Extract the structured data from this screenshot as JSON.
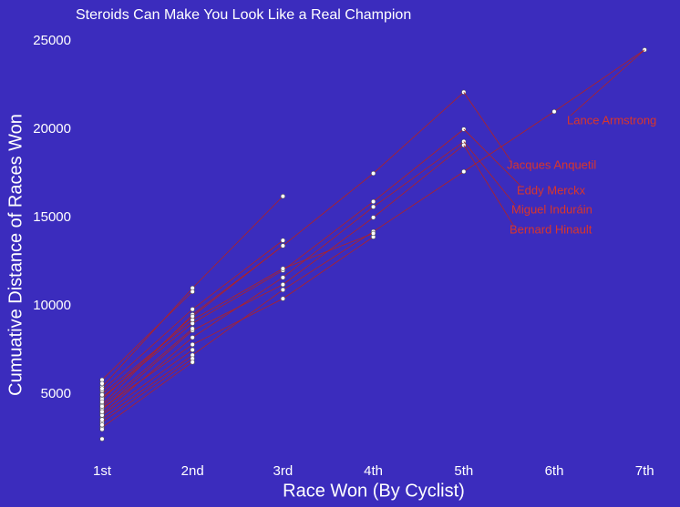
{
  "chart_data": {
    "type": "line",
    "title": "Steroids Can Make You Look Like a Real Champion",
    "x_label": "Race Won (By Cyclist)",
    "y_label": "Cumuative Distance of Races Won",
    "categories": [
      "1st",
      "2nd",
      "3rd",
      "4th",
      "5th",
      "6th",
      "7th"
    ],
    "ylim": [
      2000,
      25800
    ],
    "yticks": [
      5000,
      10000,
      15000,
      20000,
      25000
    ],
    "line_color": "#b22222",
    "point_color": "#ffffff",
    "series": [
      {
        "name": "Jacques Anquetil",
        "values": [
          4400,
          9500,
          13400,
          17500,
          22100,
          null,
          null
        ]
      },
      {
        "name": "Eddy Merckx",
        "values": [
          4800,
          9000,
          12000,
          15900,
          20000,
          null,
          null
        ]
      },
      {
        "name": "Miguel Induráin",
        "values": [
          3900,
          8200,
          11600,
          15600,
          19300,
          null,
          null
        ]
      },
      {
        "name": "Bernard Hinault",
        "values": [
          4100,
          8600,
          11200,
          15000,
          19100,
          null,
          null
        ]
      },
      {
        "name": "Lance Armstrong",
        "values": [
          3600,
          7200,
          10900,
          14200,
          17600,
          21000,
          24500
        ]
      },
      {
        "values": [
          4200,
          7800,
          10400,
          13900,
          null,
          null,
          null
        ]
      },
      {
        "values": [
          5000,
          9200,
          12100,
          14100,
          null,
          null,
          null
        ]
      },
      {
        "values": [
          5400,
          11000,
          16200,
          null,
          null,
          null,
          null
        ]
      },
      {
        "values": [
          5200,
          9800,
          13700,
          null,
          null,
          null,
          null
        ]
      },
      {
        "values": [
          4700,
          9400,
          13400,
          null,
          null,
          null,
          null
        ]
      },
      {
        "values": [
          5800,
          10800,
          null,
          null,
          null,
          null,
          null
        ]
      },
      {
        "values": [
          3400,
          7000,
          null,
          null,
          null,
          null,
          null
        ]
      },
      {
        "values": [
          3100,
          6800,
          null,
          null,
          null,
          null,
          null
        ]
      },
      {
        "values": [
          4300,
          8700,
          null,
          null,
          null,
          null,
          null
        ]
      },
      {
        "values": [
          3800,
          7500,
          null,
          null,
          null,
          null,
          null
        ]
      },
      {
        "values": [
          2450,
          null,
          null,
          null,
          null,
          null,
          null
        ]
      },
      {
        "values": [
          3000,
          null,
          null,
          null,
          null,
          null,
          null
        ]
      },
      {
        "values": [
          3250,
          null,
          null,
          null,
          null,
          null,
          null
        ]
      },
      {
        "values": [
          3550,
          null,
          null,
          null,
          null,
          null,
          null
        ]
      },
      {
        "values": [
          4000,
          null,
          null,
          null,
          null,
          null,
          null
        ]
      },
      {
        "values": [
          4550,
          null,
          null,
          null,
          null,
          null,
          null
        ]
      },
      {
        "values": [
          4950,
          null,
          null,
          null,
          null,
          null,
          null
        ]
      },
      {
        "values": [
          5300,
          null,
          null,
          null,
          null,
          null,
          null
        ]
      },
      {
        "values": [
          5600,
          null,
          null,
          null,
          null,
          null,
          null
        ]
      }
    ]
  }
}
